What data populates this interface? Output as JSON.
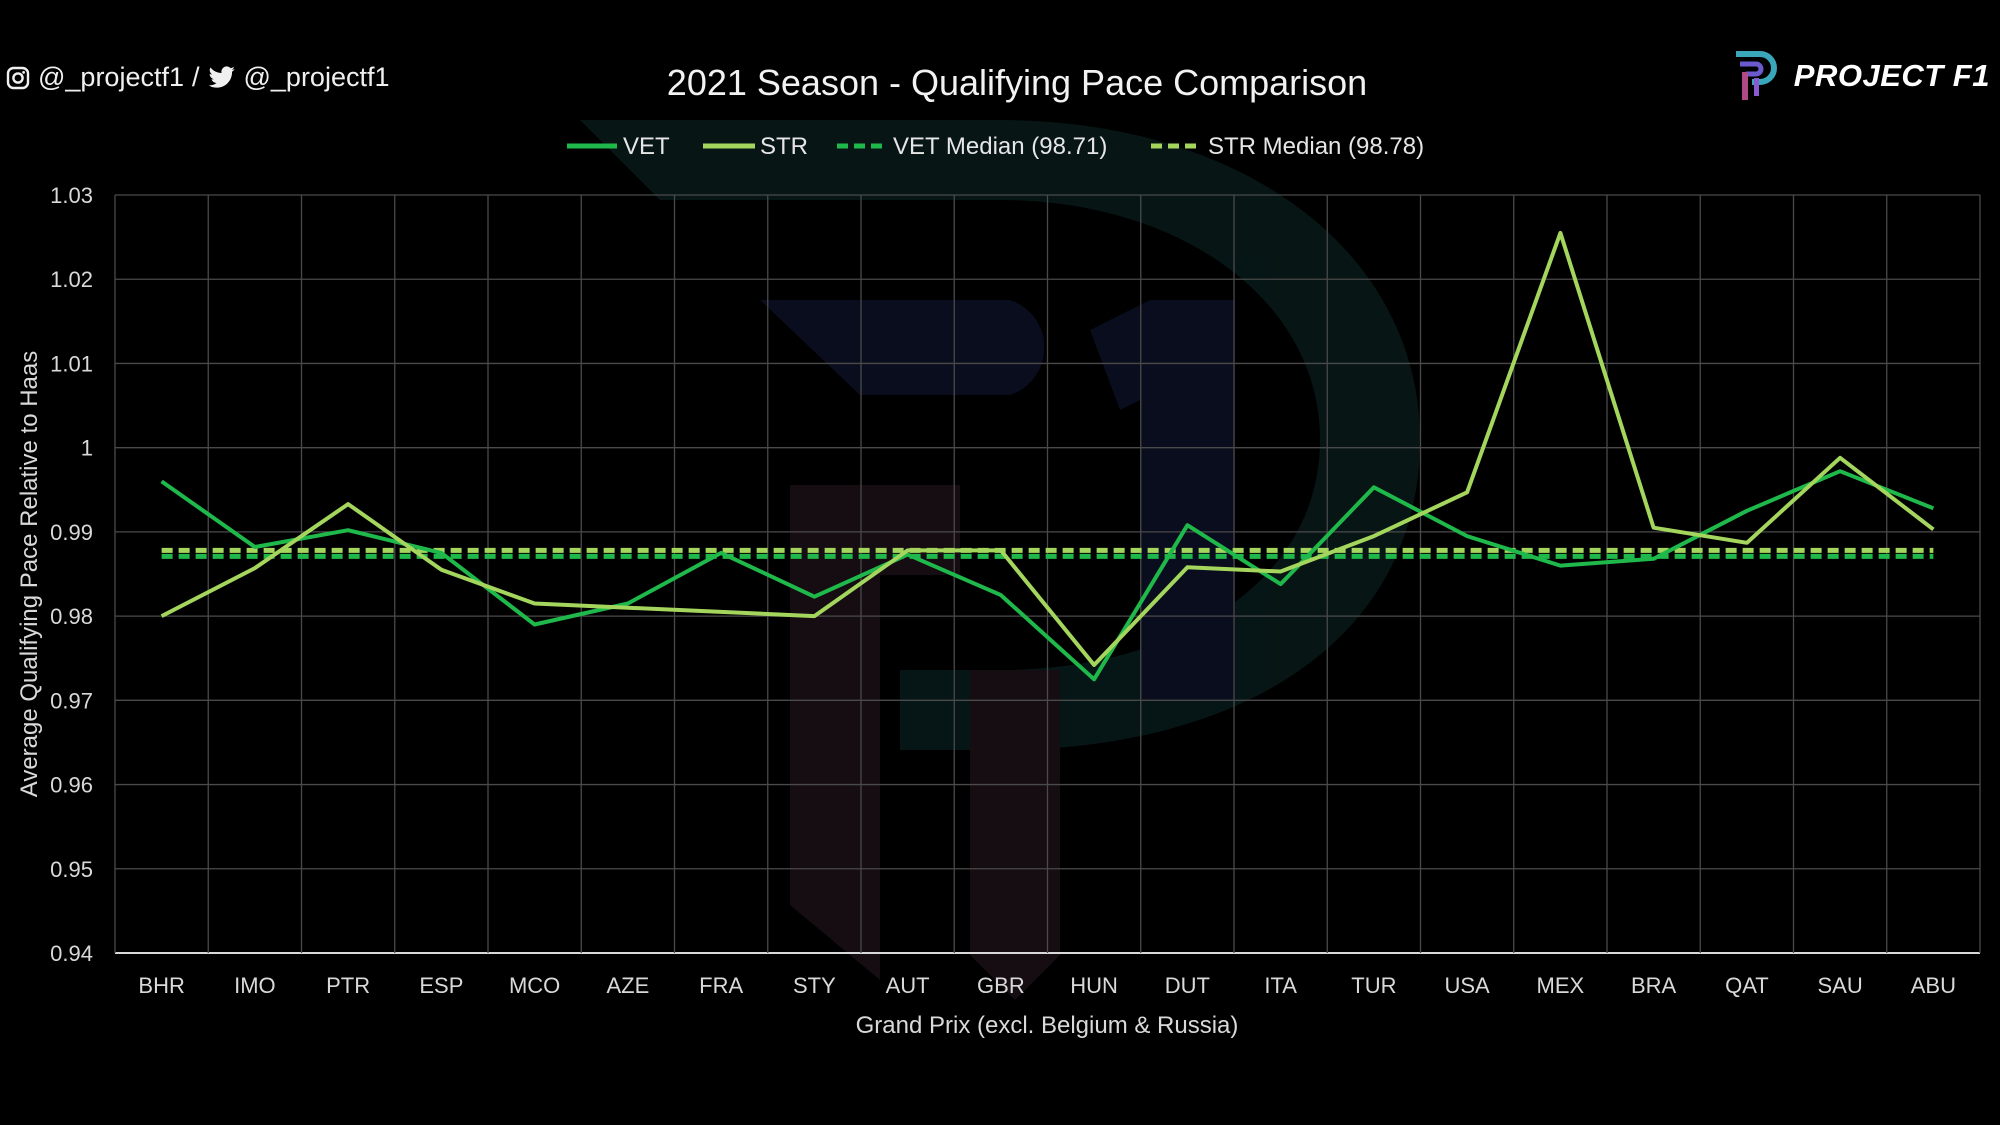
{
  "social": {
    "instagram_handle": "@_projectf1",
    "separator": "/",
    "twitter_handle": "@_projectf1"
  },
  "logo": {
    "text": "PROJECT F1"
  },
  "chart_data": {
    "type": "line",
    "title": "2021 Season - Qualifying Pace Comparison",
    "xlabel": "Grand Prix (excl. Belgium & Russia)",
    "ylabel": "Average Qualifying Pace Relative to Haas",
    "ylim": [
      0.94,
      1.03
    ],
    "yticks": [
      "1.03",
      "1.02",
      "1.01",
      "1",
      "0.99",
      "0.98",
      "0.97",
      "0.96",
      "0.95",
      "0.94"
    ],
    "ytick_values": [
      1.03,
      1.02,
      1.01,
      1.0,
      0.99,
      0.98,
      0.97,
      0.96,
      0.95,
      0.94
    ],
    "grid": true,
    "legend_position": "top-center",
    "categories": [
      "BHR",
      "IMO",
      "PTR",
      "ESP",
      "MCO",
      "AZE",
      "FRA",
      "STY",
      "AUT",
      "GBR",
      "HUN",
      "DUT",
      "ITA",
      "TUR",
      "USA",
      "MEX",
      "BRA",
      "QAT",
      "SAU",
      "ABU"
    ],
    "series": [
      {
        "name": "VET",
        "color": "#1fb84a",
        "style": "solid",
        "values": [
          0.996,
          0.9882,
          0.9902,
          0.9875,
          0.979,
          0.9815,
          0.9875,
          0.9823,
          0.9873,
          0.9825,
          0.9725,
          0.9908,
          0.9838,
          0.9953,
          0.9895,
          0.986,
          0.9868,
          0.9925,
          0.9972,
          0.9928
        ]
      },
      {
        "name": "STR",
        "color": "#a4d65e",
        "style": "solid",
        "values": [
          0.98,
          0.9857,
          0.9933,
          0.9855,
          0.9815,
          0.981,
          0.9805,
          0.98,
          0.9878,
          0.9878,
          0.9742,
          0.9858,
          0.9853,
          0.9895,
          0.9947,
          1.0255,
          0.9905,
          0.9887,
          0.9988,
          0.9903
        ]
      },
      {
        "name": "VET Median (98.71)",
        "color": "#1fb84a",
        "style": "dashed",
        "constant": 0.9871
      },
      {
        "name": "STR Median (98.78)",
        "color": "#a4d65e",
        "style": "dashed",
        "constant": 0.9878
      }
    ]
  }
}
